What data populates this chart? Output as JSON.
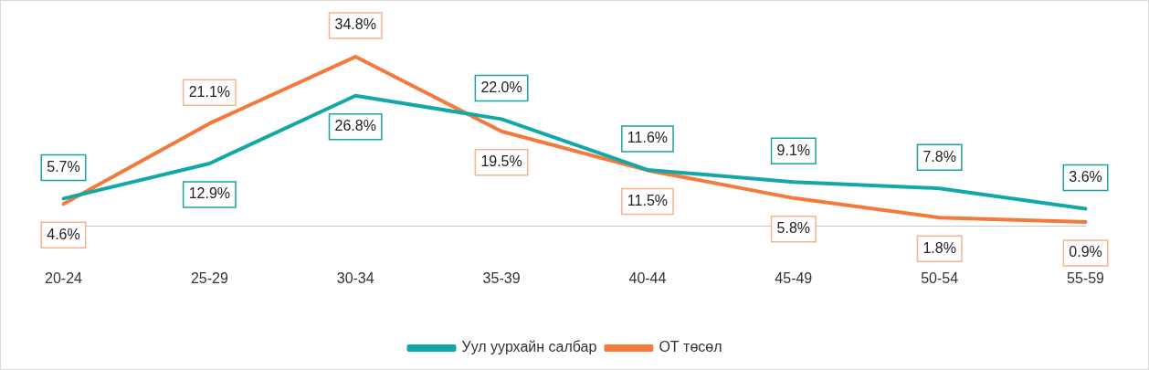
{
  "chart_data": {
    "type": "line",
    "categories": [
      "20-24",
      "25-29",
      "30-34",
      "35-39",
      "40-44",
      "45-49",
      "50-54",
      "55-59"
    ],
    "series": [
      {
        "name": "Уул уурхайн салбар",
        "color": "#13a8a8",
        "values": [
          5.7,
          12.9,
          26.8,
          22.0,
          11.6,
          9.1,
          7.8,
          3.6
        ],
        "value_labels": [
          "5.7%",
          "12.9%",
          "26.8%",
          "22.0%",
          "11.6%",
          "9.1%",
          "7.8%",
          "3.6%"
        ]
      },
      {
        "name": "ОТ төсөл",
        "color": "#f4793a",
        "values": [
          4.6,
          21.1,
          34.8,
          19.5,
          11.5,
          5.8,
          1.8,
          0.9
        ],
        "value_labels": [
          "4.6%",
          "21.1%",
          "34.8%",
          "19.5%",
          "11.5%",
          "5.8%",
          "1.8%",
          "0.9%"
        ]
      }
    ],
    "legend": "bottom",
    "grid": false,
    "marker": "none",
    "line_style": "solid"
  }
}
